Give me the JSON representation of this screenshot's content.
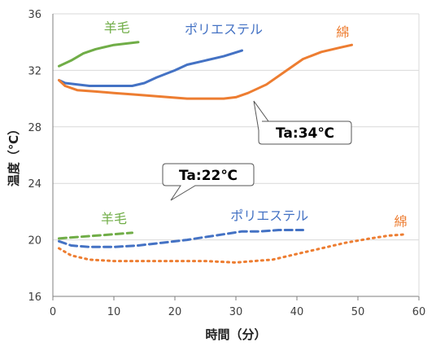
{
  "chart_data": {
    "type": "line",
    "xlabel": "時間（分）",
    "ylabel": "温度（℃）",
    "xlim": [
      0,
      60
    ],
    "ylim": [
      16,
      36
    ],
    "xticks": [
      0,
      10,
      20,
      30,
      40,
      50,
      60
    ],
    "yticks": [
      16,
      20,
      24,
      28,
      32,
      36
    ],
    "grid": "horizontal",
    "annotations": [
      {
        "name": "callout-34",
        "text": "Ta:34℃"
      },
      {
        "name": "callout-22",
        "text": "Ta:22℃"
      }
    ],
    "series": [
      {
        "name": "羊毛",
        "group": "Ta:34℃",
        "color": "#70ad47",
        "style": "solid",
        "x": [
          1,
          3,
          5,
          7,
          10,
          14
        ],
        "y": [
          32.3,
          32.7,
          33.2,
          33.5,
          33.8,
          34.0
        ]
      },
      {
        "name": "ポリエステル",
        "group": "Ta:34℃",
        "color": "#4472c4",
        "style": "solid",
        "x": [
          1,
          2,
          4,
          6,
          10,
          13,
          15,
          17,
          20,
          22,
          25,
          28,
          31
        ],
        "y": [
          31.3,
          31.1,
          31.0,
          30.9,
          30.9,
          30.9,
          31.1,
          31.5,
          32.0,
          32.4,
          32.7,
          33.0,
          33.4
        ]
      },
      {
        "name": "綿",
        "group": "Ta:34℃",
        "color": "#ed7d31",
        "style": "solid",
        "x": [
          1,
          2,
          4,
          7,
          10,
          13,
          16,
          19,
          22,
          25,
          28,
          30,
          32,
          35,
          38,
          41,
          44,
          47,
          49
        ],
        "y": [
          31.3,
          30.9,
          30.6,
          30.5,
          30.4,
          30.3,
          30.2,
          30.1,
          30.0,
          30.0,
          30.0,
          30.1,
          30.4,
          31.0,
          31.9,
          32.8,
          33.3,
          33.6,
          33.8
        ]
      },
      {
        "name": "羊毛",
        "group": "Ta:22℃",
        "color": "#70ad47",
        "style": "dashed",
        "x": [
          1,
          4,
          7,
          10,
          13
        ],
        "y": [
          20.1,
          20.2,
          20.3,
          20.4,
          20.5
        ]
      },
      {
        "name": "ポリエステル",
        "group": "Ta:22℃",
        "color": "#4472c4",
        "style": "dashed",
        "x": [
          1,
          3,
          6,
          10,
          14,
          18,
          22,
          25,
          28,
          31,
          34,
          37,
          41
        ],
        "y": [
          19.9,
          19.6,
          19.5,
          19.5,
          19.6,
          19.8,
          20.0,
          20.2,
          20.4,
          20.6,
          20.6,
          20.7,
          20.7
        ]
      },
      {
        "name": "綿",
        "group": "Ta:22℃",
        "color": "#ed7d31",
        "style": "dotted",
        "x": [
          1,
          3,
          6,
          10,
          15,
          20,
          25,
          30,
          33,
          36,
          40,
          44,
          48,
          52,
          55,
          58
        ],
        "y": [
          19.4,
          18.9,
          18.6,
          18.5,
          18.5,
          18.5,
          18.5,
          18.4,
          18.5,
          18.6,
          19.0,
          19.4,
          19.8,
          20.1,
          20.3,
          20.4
        ]
      }
    ]
  }
}
